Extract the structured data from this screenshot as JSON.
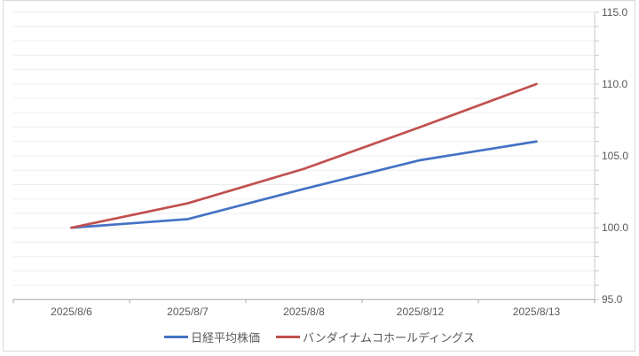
{
  "window": {
    "background": "#ffffff",
    "frame_border_color": "#d9d9d9"
  },
  "chart_data": {
    "type": "line",
    "title": "",
    "xlabel": "",
    "ylabel": "",
    "categories": [
      "2025/8/6",
      "2025/8/7",
      "2025/8/8",
      "2025/8/12",
      "2025/8/13"
    ],
    "series": [
      {
        "name": "日経平均株価",
        "color": "#4472c4",
        "values": [
          100.0,
          100.6,
          102.7,
          104.7,
          106.0
        ]
      },
      {
        "name": "バンダイナムコホールディングス",
        "color": "#c0504d",
        "values": [
          100.0,
          101.7,
          104.1,
          107.0,
          110.0
        ]
      }
    ],
    "ylim": [
      95,
      115
    ],
    "y_major_unit": 5,
    "y_minor_unit": 1,
    "y_tick_labels": [
      "115.0",
      "110.0",
      "105.0",
      "100.0",
      "95.0"
    ],
    "y_axis_side": "right",
    "grid": true,
    "legend_position": "bottom",
    "colors": {
      "gridline": "#ededed",
      "x_axis": "#a6a6a6",
      "y_axis": "#c9c9c9",
      "tick_text": "#595959"
    }
  }
}
